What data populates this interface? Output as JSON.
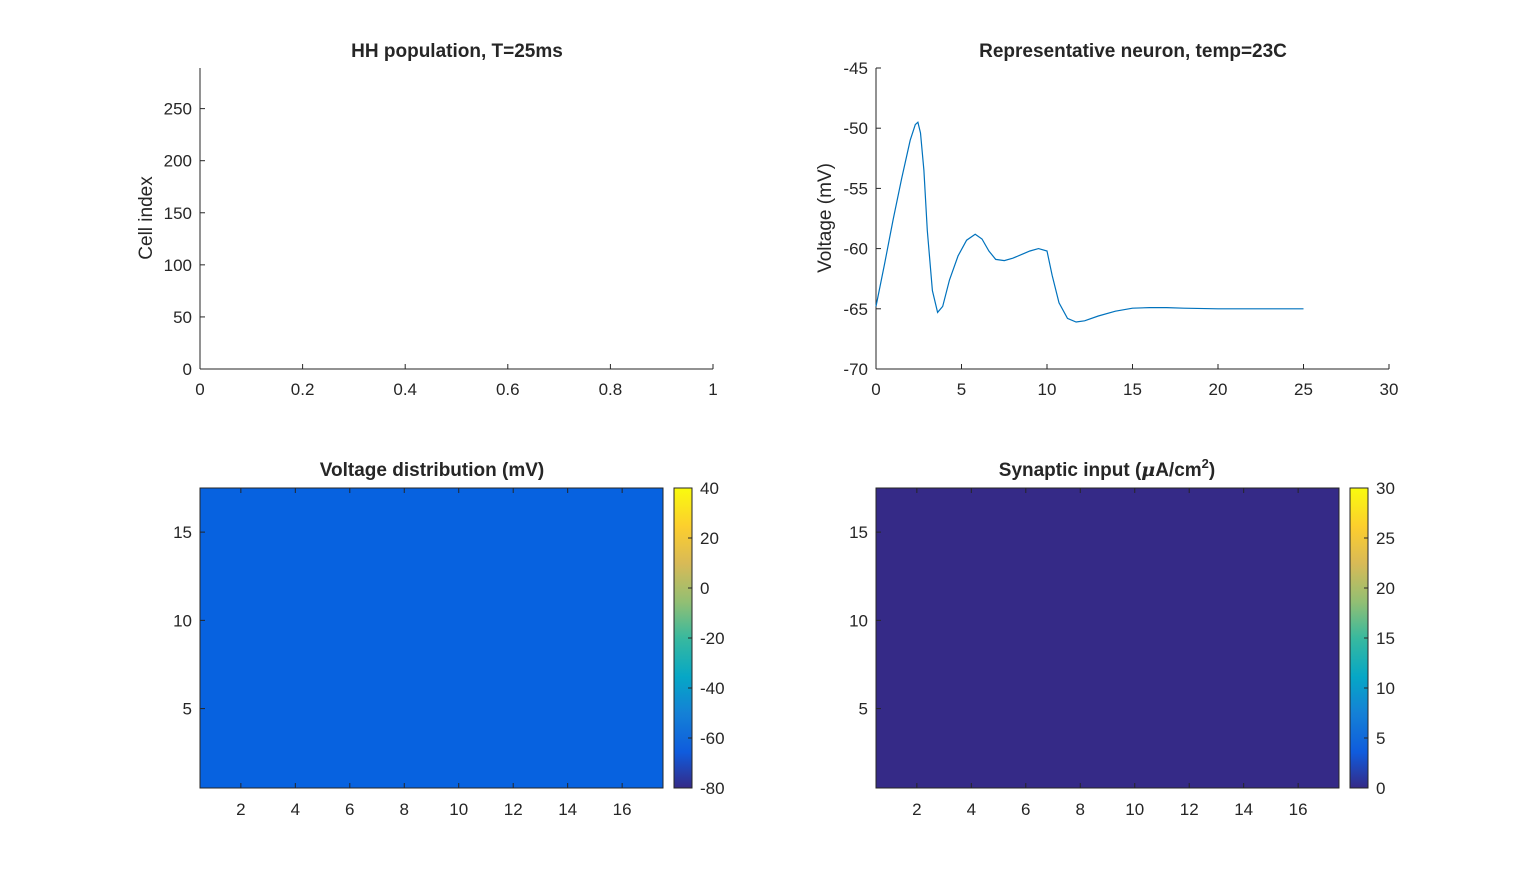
{
  "chart_data": [
    {
      "type": "scatter",
      "title": "HH population, T=25ms",
      "xlabel": "",
      "ylabel": "Cell index",
      "xlim": [
        0,
        1
      ],
      "ylim": [
        0,
        289
      ],
      "x_ticks": [
        "0",
        "0.2",
        "0.4",
        "0.6",
        "0.8",
        "1"
      ],
      "y_ticks": [
        "0",
        "50",
        "100",
        "150",
        "200",
        "250"
      ],
      "x": [],
      "y": []
    },
    {
      "type": "line",
      "title": "Representative neuron, temp=23C",
      "xlabel": "",
      "ylabel": "Voltage (mV)",
      "xlim": [
        0,
        30
      ],
      "ylim": [
        -70,
        -45
      ],
      "x_ticks": [
        "0",
        "5",
        "10",
        "15",
        "20",
        "25",
        "30"
      ],
      "y_ticks": [
        "-70",
        "-65",
        "-60",
        "-55",
        "-50",
        "-45"
      ],
      "color": "#0072BD",
      "x": [
        0,
        0.5,
        1,
        1.5,
        2,
        2.3,
        2.45,
        2.6,
        2.8,
        3.0,
        3.3,
        3.6,
        3.9,
        4.3,
        4.8,
        5.3,
        5.8,
        6.2,
        6.6,
        7.0,
        7.5,
        8.0,
        8.5,
        9.0,
        9.5,
        10.0,
        10.3,
        10.7,
        11.2,
        11.7,
        12.2,
        13.0,
        14.0,
        15.0,
        16.0,
        17.0,
        18.0,
        20.0,
        22.0,
        25.0
      ],
      "y": [
        -64.8,
        -61.3,
        -57.6,
        -54.2,
        -51.0,
        -49.7,
        -49.5,
        -50.4,
        -53.5,
        -58.5,
        -63.5,
        -65.3,
        -64.8,
        -62.6,
        -60.6,
        -59.3,
        -58.8,
        -59.2,
        -60.2,
        -60.9,
        -61.0,
        -60.8,
        -60.5,
        -60.2,
        -60.0,
        -60.2,
        -62.2,
        -64.5,
        -65.8,
        -66.1,
        -66.0,
        -65.6,
        -65.2,
        -64.95,
        -64.9,
        -64.9,
        -64.95,
        -65.0,
        -65.0,
        -65.0
      ]
    },
    {
      "type": "heatmap",
      "title": "Voltage distribution (mV)",
      "xlim": [
        0.5,
        17.5
      ],
      "ylim": [
        0.5,
        17.5
      ],
      "x_ticks": [
        "2",
        "4",
        "6",
        "8",
        "10",
        "12",
        "14",
        "16"
      ],
      "y_ticks": [
        "5",
        "10",
        "15"
      ],
      "grid_size": [
        17,
        17
      ],
      "value": -65,
      "colorbar": {
        "min": -80,
        "max": 40,
        "ticks": [
          "40",
          "20",
          "0",
          "-20",
          "-40",
          "-60",
          "-80"
        ]
      },
      "fill_color": "#0762E0"
    },
    {
      "type": "heatmap",
      "title_main": "Synaptic input (",
      "title_mu": "μ",
      "title_unit": "A/cm",
      "title_sup": "2",
      "title_end": ")",
      "xlim": [
        0.5,
        17.5
      ],
      "ylim": [
        0.5,
        17.5
      ],
      "x_ticks": [
        "2",
        "4",
        "6",
        "8",
        "10",
        "12",
        "14",
        "16"
      ],
      "y_ticks": [
        "5",
        "10",
        "15"
      ],
      "grid_size": [
        17,
        17
      ],
      "value": 0,
      "colorbar": {
        "min": 0,
        "max": 30,
        "ticks": [
          "30",
          "25",
          "20",
          "15",
          "10",
          "5",
          "0"
        ]
      },
      "fill_color": "#352A87"
    }
  ]
}
